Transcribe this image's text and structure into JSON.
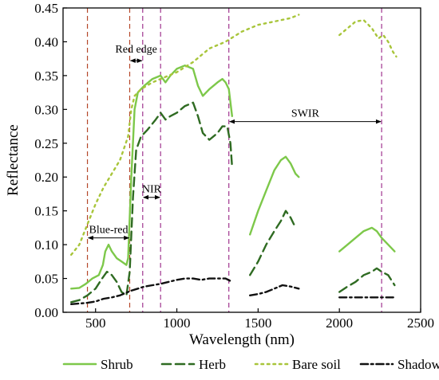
{
  "chart_data": {
    "type": "line",
    "xlabel": "Wavelength (nm)",
    "ylabel": "Reflectance",
    "xlim": [
      300,
      2500
    ],
    "ylim": [
      0,
      0.45
    ],
    "xticks": [
      500,
      1000,
      1500,
      2000,
      2500
    ],
    "yticks": [
      0.0,
      0.05,
      0.1,
      0.15,
      0.2,
      0.25,
      0.3,
      0.35,
      0.4,
      0.45
    ],
    "grid": false,
    "legend_position": "bottom",
    "series": [
      {
        "name": "Shrub",
        "color": "#7dc84a",
        "style": "solid",
        "segments": [
          [
            [
              350,
              0.035
            ],
            [
              400,
              0.036
            ],
            [
              440,
              0.042
            ],
            [
              480,
              0.05
            ],
            [
              520,
              0.055
            ],
            [
              545,
              0.07
            ],
            [
              560,
              0.09
            ],
            [
              580,
              0.1
            ],
            [
              600,
              0.09
            ],
            [
              630,
              0.08
            ],
            [
              660,
              0.075
            ],
            [
              690,
              0.07
            ],
            [
              700,
              0.08
            ],
            [
              720,
              0.2
            ],
            [
              740,
              0.3
            ],
            [
              760,
              0.325
            ],
            [
              800,
              0.335
            ],
            [
              850,
              0.345
            ],
            [
              900,
              0.35
            ],
            [
              930,
              0.34
            ],
            [
              960,
              0.35
            ],
            [
              1000,
              0.36
            ],
            [
              1050,
              0.365
            ],
            [
              1100,
              0.36
            ],
            [
              1130,
              0.335
            ],
            [
              1160,
              0.32
            ],
            [
              1200,
              0.33
            ],
            [
              1250,
              0.34
            ],
            [
              1280,
              0.345
            ],
            [
              1300,
              0.34
            ],
            [
              1320,
              0.33
            ],
            [
              1340,
              0.29
            ]
          ],
          [
            [
              1450,
              0.115
            ],
            [
              1500,
              0.15
            ],
            [
              1550,
              0.18
            ],
            [
              1600,
              0.21
            ],
            [
              1640,
              0.225
            ],
            [
              1670,
              0.23
            ],
            [
              1700,
              0.22
            ],
            [
              1730,
              0.205
            ],
            [
              1750,
              0.2
            ]
          ],
          [
            [
              2000,
              0.09
            ],
            [
              2050,
              0.1
            ],
            [
              2100,
              0.11
            ],
            [
              2150,
              0.12
            ],
            [
              2200,
              0.125
            ],
            [
              2230,
              0.12
            ],
            [
              2260,
              0.11
            ],
            [
              2300,
              0.1
            ],
            [
              2340,
              0.09
            ]
          ]
        ]
      },
      {
        "name": "Herb",
        "color": "#2f6b22",
        "style": "dashed",
        "segments": [
          [
            [
              350,
              0.015
            ],
            [
              400,
              0.018
            ],
            [
              450,
              0.025
            ],
            [
              500,
              0.035
            ],
            [
              540,
              0.05
            ],
            [
              570,
              0.06
            ],
            [
              600,
              0.055
            ],
            [
              630,
              0.045
            ],
            [
              660,
              0.03
            ],
            [
              690,
              0.025
            ],
            [
              710,
              0.06
            ],
            [
              730,
              0.17
            ],
            [
              750,
              0.24
            ],
            [
              780,
              0.26
            ],
            [
              820,
              0.27
            ],
            [
              870,
              0.285
            ],
            [
              900,
              0.295
            ],
            [
              930,
              0.285
            ],
            [
              960,
              0.29
            ],
            [
              1000,
              0.295
            ],
            [
              1050,
              0.305
            ],
            [
              1100,
              0.31
            ],
            [
              1130,
              0.29
            ],
            [
              1160,
              0.265
            ],
            [
              1200,
              0.255
            ],
            [
              1250,
              0.265
            ],
            [
              1280,
              0.275
            ],
            [
              1310,
              0.275
            ],
            [
              1330,
              0.25
            ],
            [
              1340,
              0.215
            ]
          ],
          [
            [
              1450,
              0.055
            ],
            [
              1500,
              0.075
            ],
            [
              1550,
              0.1
            ],
            [
              1600,
              0.12
            ],
            [
              1640,
              0.135
            ],
            [
              1670,
              0.15
            ],
            [
              1700,
              0.14
            ],
            [
              1720,
              0.13
            ]
          ],
          [
            [
              2000,
              0.03
            ],
            [
              2050,
              0.038
            ],
            [
              2100,
              0.045
            ],
            [
              2150,
              0.055
            ],
            [
              2200,
              0.06
            ],
            [
              2230,
              0.065
            ],
            [
              2260,
              0.06
            ],
            [
              2300,
              0.055
            ],
            [
              2340,
              0.04
            ]
          ]
        ]
      },
      {
        "name": "Bare soil",
        "color": "#a8c53a",
        "style": "dotted",
        "segments": [
          [
            [
              350,
              0.085
            ],
            [
              400,
              0.1
            ],
            [
              450,
              0.13
            ],
            [
              500,
              0.16
            ],
            [
              550,
              0.185
            ],
            [
              600,
              0.205
            ],
            [
              650,
              0.225
            ],
            [
              700,
              0.26
            ],
            [
              720,
              0.3
            ],
            [
              740,
              0.32
            ],
            [
              780,
              0.33
            ],
            [
              850,
              0.34
            ],
            [
              900,
              0.345
            ],
            [
              1000,
              0.355
            ],
            [
              1100,
              0.37
            ],
            [
              1200,
              0.39
            ],
            [
              1300,
              0.4
            ],
            [
              1400,
              0.415
            ],
            [
              1500,
              0.425
            ],
            [
              1600,
              0.43
            ],
            [
              1700,
              0.435
            ],
            [
              1750,
              0.44
            ]
          ],
          [
            [
              2000,
              0.41
            ],
            [
              2050,
              0.42
            ],
            [
              2100,
              0.43
            ],
            [
              2150,
              0.432
            ],
            [
              2200,
              0.42
            ],
            [
              2240,
              0.405
            ],
            [
              2270,
              0.41
            ],
            [
              2300,
              0.4
            ],
            [
              2330,
              0.385
            ],
            [
              2350,
              0.378
            ]
          ]
        ]
      },
      {
        "name": "Shadow",
        "color": "#111111",
        "style": "dashdot",
        "segments": [
          [
            [
              350,
              0.012
            ],
            [
              400,
              0.013
            ],
            [
              450,
              0.014
            ],
            [
              500,
              0.016
            ],
            [
              550,
              0.02
            ],
            [
              600,
              0.022
            ],
            [
              650,
              0.025
            ],
            [
              700,
              0.03
            ],
            [
              720,
              0.032
            ],
            [
              760,
              0.035
            ],
            [
              800,
              0.038
            ],
            [
              850,
              0.04
            ],
            [
              900,
              0.042
            ],
            [
              950,
              0.045
            ],
            [
              1000,
              0.048
            ],
            [
              1050,
              0.05
            ],
            [
              1100,
              0.05
            ],
            [
              1150,
              0.048
            ],
            [
              1200,
              0.05
            ],
            [
              1250,
              0.05
            ],
            [
              1300,
              0.05
            ],
            [
              1340,
              0.045
            ]
          ],
          [
            [
              1450,
              0.025
            ],
            [
              1500,
              0.027
            ],
            [
              1550,
              0.03
            ],
            [
              1600,
              0.035
            ],
            [
              1650,
              0.04
            ],
            [
              1700,
              0.038
            ],
            [
              1750,
              0.035
            ]
          ],
          [
            [
              2000,
              0.022
            ],
            [
              2100,
              0.022
            ],
            [
              2200,
              0.022
            ],
            [
              2300,
              0.022
            ],
            [
              2340,
              0.022
            ]
          ]
        ]
      }
    ],
    "vlines": [
      {
        "x": 450,
        "color": "#b5482a"
      },
      {
        "x": 710,
        "color": "#b5482a"
      },
      {
        "x": 790,
        "color": "#a0358f"
      },
      {
        "x": 900,
        "color": "#a0358f"
      },
      {
        "x": 1320,
        "color": "#a0358f"
      },
      {
        "x": 2260,
        "color": "#a0358f"
      }
    ],
    "annotations": [
      {
        "label": "Blue-red",
        "from": 450,
        "to": 710,
        "y": 0.11
      },
      {
        "label": "Red edge",
        "from": 710,
        "to": 790,
        "y": 0.372
      },
      {
        "label": "NIR",
        "from": 790,
        "to": 900,
        "y": 0.17
      },
      {
        "label": "SWIR",
        "from": 1320,
        "to": 2260,
        "y": 0.282
      }
    ]
  }
}
